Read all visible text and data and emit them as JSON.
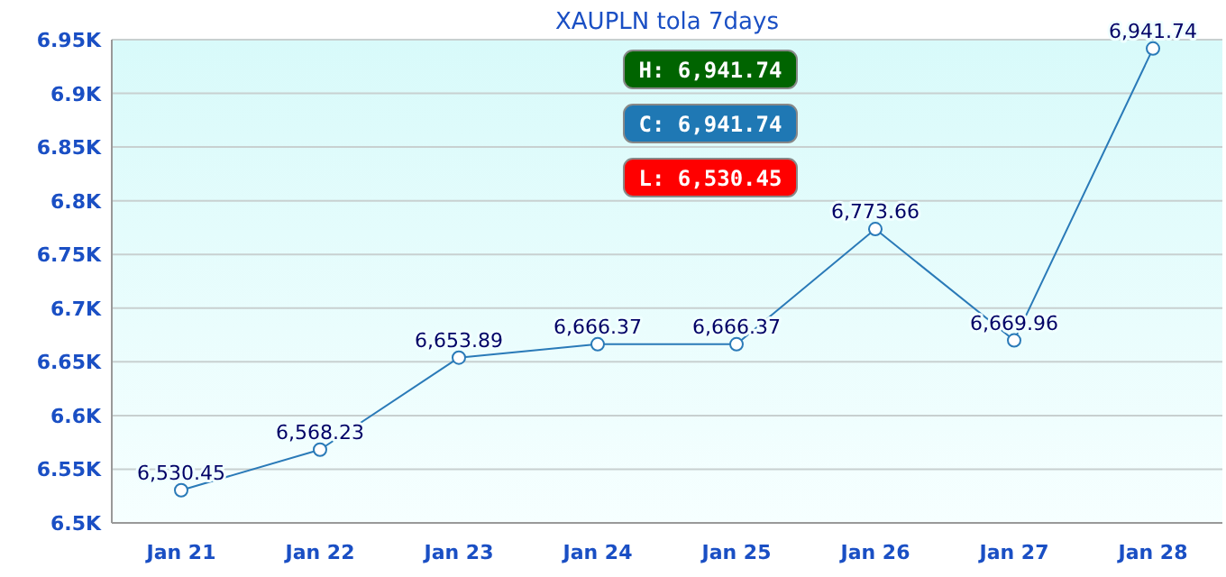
{
  "chart_data": {
    "type": "line",
    "title": "XAUPLN tola  7days",
    "categories": [
      "Jan 21",
      "Jan 22",
      "Jan 23",
      "Jan 24",
      "Jan 25",
      "Jan 26",
      "Jan 27",
      "Jan 28"
    ],
    "series": [
      {
        "color": "#2a7ab8",
        "values": [
          6530.45,
          6568.23,
          6653.89,
          6666.37,
          6666.37,
          6773.66,
          6669.96,
          6941.74
        ],
        "value_labels": [
          "6,530.45",
          "6,568.23",
          "6,653.89",
          "6,666.37",
          "6,666.37",
          "6,773.66",
          "6,669.96",
          "6,941.74"
        ]
      }
    ],
    "ylim": [
      6500,
      6950
    ],
    "yticks": [
      {
        "value": 6500,
        "label": "6.5K"
      },
      {
        "value": 6550,
        "label": "6.55K"
      },
      {
        "value": 6600,
        "label": "6.6K"
      },
      {
        "value": 6650,
        "label": "6.65K"
      },
      {
        "value": 6700,
        "label": "6.7K"
      },
      {
        "value": 6750,
        "label": "6.75K"
      },
      {
        "value": 6800,
        "label": "6.8K"
      },
      {
        "value": 6850,
        "label": "6.85K"
      },
      {
        "value": 6900,
        "label": "6.9K"
      },
      {
        "value": 6950,
        "label": "6.95K"
      }
    ],
    "grid": "y",
    "marker": "circle",
    "line_style": "solid",
    "annotations": [
      "H: 6,941.74",
      "C: 6,941.74",
      "L: 6,530.45"
    ]
  }
}
